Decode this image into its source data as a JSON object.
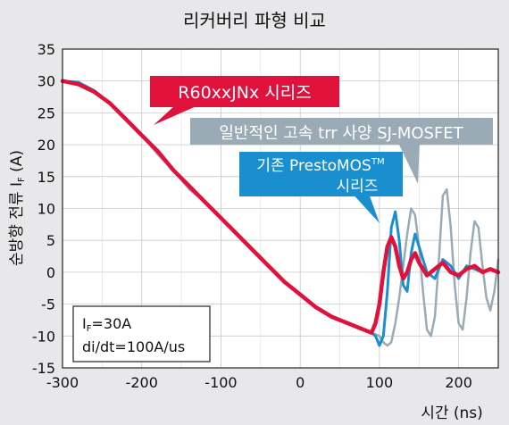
{
  "chart_data": {
    "type": "line",
    "title": "리커버리 파형 비교",
    "xlabel": "시간 (ns)",
    "ylabel": "순방향 전류 I",
    "ylabel_sub": "F",
    "ylabel_unit": " (A)",
    "xlim": [
      -300,
      250
    ],
    "ylim": [
      -15,
      35
    ],
    "x_ticks": [
      -300,
      -200,
      -100,
      0,
      100,
      200
    ],
    "y_ticks": [
      -15,
      -10,
      -5,
      0,
      5,
      10,
      15,
      20,
      25,
      30,
      35
    ],
    "x_tick_labels": [
      "-300",
      "-200",
      "-100",
      "0",
      "100",
      "200"
    ],
    "y_tick_labels": [
      "-15",
      "-10",
      "-5",
      "0",
      "5",
      "10",
      "15",
      "20",
      "25",
      "30",
      "35"
    ],
    "grid": true,
    "series": [
      {
        "name": "일반적인 고속 trr 사양 SJ-MOSFET",
        "color": "#9aabb6",
        "x": [
          -300,
          -280,
          -260,
          -240,
          -220,
          -200,
          -180,
          -160,
          -140,
          -120,
          -100,
          -80,
          -60,
          -40,
          -20,
          0,
          20,
          40,
          60,
          80,
          90,
          100,
          105,
          110,
          115,
          120,
          125,
          130,
          135,
          140,
          145,
          150,
          155,
          160,
          165,
          170,
          175,
          180,
          185,
          190,
          195,
          200,
          205,
          210,
          215,
          220,
          225,
          230,
          235,
          240,
          245,
          250
        ],
        "y": [
          30,
          29.5,
          28.5,
          26.5,
          24,
          21.5,
          18.5,
          16,
          13,
          11,
          8.5,
          6,
          3.5,
          1,
          -1.5,
          -3.5,
          -5.5,
          -7,
          -8,
          -9,
          -9.5,
          -10,
          -11,
          -11.5,
          -11,
          -8,
          -4,
          1,
          6,
          10,
          9,
          4,
          -3,
          -9,
          -10,
          -7,
          2,
          12,
          13,
          7,
          -2,
          -8,
          -9,
          -4,
          3,
          8,
          7,
          1,
          -4,
          -6,
          -3,
          2
        ]
      },
      {
        "name": "기존 PrestoMOS™ 시리즈",
        "color": "#1a8fd0",
        "x": [
          -300,
          -280,
          -260,
          -240,
          -220,
          -200,
          -180,
          -160,
          -140,
          -120,
          -100,
          -80,
          -60,
          -40,
          -20,
          0,
          20,
          40,
          60,
          80,
          90,
          95,
          100,
          105,
          110,
          115,
          120,
          125,
          130,
          135,
          140,
          145,
          150,
          160,
          170,
          180,
          190,
          200,
          210,
          220,
          230,
          240,
          250
        ],
        "y": [
          30,
          29.8,
          28.5,
          26.5,
          24,
          21.5,
          19,
          16,
          13.5,
          11,
          8.5,
          6,
          3.5,
          1,
          -1.5,
          -3.5,
          -5.5,
          -7,
          -8,
          -9,
          -9.5,
          -10,
          -11.5,
          -10,
          -3,
          7,
          9.5,
          5,
          -2,
          -3,
          3,
          6,
          4,
          0,
          -1,
          2,
          1,
          -1,
          1,
          0.5,
          0,
          0.5,
          0
        ]
      },
      {
        "name": "R60xxJNx 시리즈",
        "color": "#e0113a",
        "x": [
          -300,
          -280,
          -260,
          -240,
          -220,
          -200,
          -180,
          -160,
          -140,
          -120,
          -100,
          -80,
          -60,
          -40,
          -20,
          0,
          20,
          40,
          60,
          80,
          90,
          95,
          100,
          105,
          110,
          115,
          120,
          125,
          130,
          135,
          140,
          145,
          150,
          160,
          170,
          180,
          190,
          200,
          210,
          220,
          230,
          240,
          250
        ],
        "y": [
          30,
          29.5,
          28.3,
          26.5,
          24,
          21.5,
          19,
          16,
          13.5,
          11,
          8.5,
          6,
          3.5,
          1,
          -1.5,
          -3.5,
          -5.5,
          -7,
          -8,
          -9,
          -9.5,
          -8,
          -5,
          0,
          4,
          5.5,
          4,
          1,
          -1,
          0,
          2,
          3,
          1.5,
          -0.5,
          0.5,
          1.5,
          0,
          -0.5,
          0.5,
          1,
          0,
          0.5,
          0
        ]
      }
    ],
    "annotations": [
      {
        "id": "red",
        "lines": [
          "R60xxJNx 시리즈"
        ],
        "bg": "#e0113a",
        "fg": "#ffffff"
      },
      {
        "id": "gray",
        "lines": [
          "일반적인 고속 trr 사양 SJ-MOSFET"
        ],
        "bg": "#9aabb6",
        "fg": "#ffffff"
      },
      {
        "id": "blue",
        "lines": [
          "기존 PrestoMOS",
          "시리즈"
        ],
        "sup": "TM",
        "bg": "#1a8fd0",
        "fg": "#ffffff"
      }
    ],
    "conditions": {
      "line1": "I",
      "line1_sub": "F",
      "line1_rest": "=30A",
      "line2": "di/dt=100A/us"
    }
  }
}
